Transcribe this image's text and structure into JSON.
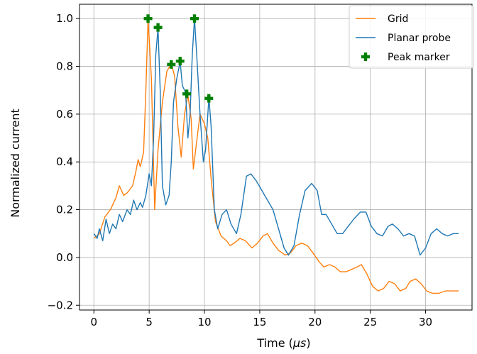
{
  "chart_data": {
    "type": "line",
    "title": "",
    "xlabel_prefix": "Time (",
    "xlabel_unit": "μs",
    "xlabel_suffix": ")",
    "ylabel": "Normalized current",
    "xlim": [
      -1.3,
      34.2
    ],
    "ylim": [
      -0.22,
      1.06
    ],
    "xticks": [
      0,
      5,
      10,
      15,
      20,
      25,
      30
    ],
    "xtick_labels": [
      "0",
      "5",
      "10",
      "15",
      "20",
      "25",
      "30"
    ],
    "yticks": [
      -0.2,
      0.0,
      0.2,
      0.4,
      0.6,
      0.8,
      1.0
    ],
    "ytick_labels": [
      "−0.2",
      "0.0",
      "0.2",
      "0.4",
      "0.6",
      "0.8",
      "1.0"
    ],
    "grid": true,
    "legend_position": "top-right",
    "series": [
      {
        "name": "Grid",
        "color": "#ff7f0e",
        "points": [
          [
            0.0,
            0.08
          ],
          [
            0.5,
            0.1
          ],
          [
            1.0,
            0.17
          ],
          [
            1.5,
            0.2
          ],
          [
            2.0,
            0.25
          ],
          [
            2.3,
            0.3
          ],
          [
            2.7,
            0.26
          ],
          [
            3.0,
            0.27
          ],
          [
            3.5,
            0.3
          ],
          [
            3.8,
            0.36
          ],
          [
            4.0,
            0.41
          ],
          [
            4.2,
            0.38
          ],
          [
            4.5,
            0.44
          ],
          [
            4.7,
            0.7
          ],
          [
            4.9,
            1.0
          ],
          [
            5.2,
            0.75
          ],
          [
            5.5,
            0.2
          ],
          [
            5.8,
            0.45
          ],
          [
            6.2,
            0.65
          ],
          [
            6.6,
            0.78
          ],
          [
            7.0,
            0.81
          ],
          [
            7.3,
            0.76
          ],
          [
            7.6,
            0.55
          ],
          [
            7.9,
            0.42
          ],
          [
            8.2,
            0.6
          ],
          [
            8.5,
            0.68
          ],
          [
            8.8,
            0.58
          ],
          [
            9.0,
            0.37
          ],
          [
            9.2,
            0.45
          ],
          [
            9.6,
            0.6
          ],
          [
            10.0,
            0.56
          ],
          [
            10.3,
            0.5
          ],
          [
            10.6,
            0.33
          ],
          [
            11.0,
            0.15
          ],
          [
            11.5,
            0.09
          ],
          [
            12.0,
            0.07
          ],
          [
            12.3,
            0.05
          ],
          [
            12.7,
            0.06
          ],
          [
            13.2,
            0.08
          ],
          [
            13.7,
            0.07
          ],
          [
            14.3,
            0.04
          ],
          [
            14.8,
            0.06
          ],
          [
            15.3,
            0.09
          ],
          [
            15.7,
            0.1
          ],
          [
            16.2,
            0.06
          ],
          [
            16.7,
            0.03
          ],
          [
            17.3,
            0.01
          ],
          [
            17.8,
            0.02
          ],
          [
            18.3,
            0.05
          ],
          [
            18.8,
            0.06
          ],
          [
            19.3,
            0.05
          ],
          [
            19.8,
            0.02
          ],
          [
            20.4,
            -0.02
          ],
          [
            20.8,
            -0.04
          ],
          [
            21.3,
            -0.03
          ],
          [
            21.8,
            -0.04
          ],
          [
            22.3,
            -0.06
          ],
          [
            22.8,
            -0.06
          ],
          [
            23.3,
            -0.05
          ],
          [
            23.8,
            -0.04
          ],
          [
            24.2,
            -0.03
          ],
          [
            24.7,
            -0.07
          ],
          [
            25.2,
            -0.12
          ],
          [
            25.7,
            -0.14
          ],
          [
            26.2,
            -0.13
          ],
          [
            26.7,
            -0.1
          ],
          [
            27.2,
            -0.11
          ],
          [
            27.7,
            -0.14
          ],
          [
            28.2,
            -0.13
          ],
          [
            28.6,
            -0.1
          ],
          [
            29.1,
            -0.09
          ],
          [
            29.6,
            -0.11
          ],
          [
            30.1,
            -0.14
          ],
          [
            30.6,
            -0.15
          ],
          [
            31.2,
            -0.15
          ],
          [
            31.8,
            -0.14
          ],
          [
            32.4,
            -0.14
          ],
          [
            33.0,
            -0.14
          ]
        ]
      },
      {
        "name": "Planar probe",
        "color": "#1f77b4",
        "points": [
          [
            0.0,
            0.1
          ],
          [
            0.3,
            0.08
          ],
          [
            0.5,
            0.12
          ],
          [
            0.8,
            0.07
          ],
          [
            1.1,
            0.16
          ],
          [
            1.4,
            0.1
          ],
          [
            1.7,
            0.14
          ],
          [
            2.0,
            0.12
          ],
          [
            2.3,
            0.18
          ],
          [
            2.6,
            0.15
          ],
          [
            3.0,
            0.2
          ],
          [
            3.3,
            0.18
          ],
          [
            3.6,
            0.24
          ],
          [
            3.9,
            0.2
          ],
          [
            4.2,
            0.23
          ],
          [
            4.4,
            0.21
          ],
          [
            4.7,
            0.26
          ],
          [
            5.0,
            0.35
          ],
          [
            5.2,
            0.3
          ],
          [
            5.4,
            0.5
          ],
          [
            5.6,
            0.85
          ],
          [
            5.8,
            0.96
          ],
          [
            6.0,
            0.7
          ],
          [
            6.2,
            0.3
          ],
          [
            6.5,
            0.22
          ],
          [
            6.8,
            0.26
          ],
          [
            7.0,
            0.4
          ],
          [
            7.2,
            0.65
          ],
          [
            7.5,
            0.75
          ],
          [
            7.8,
            0.82
          ],
          [
            8.0,
            0.72
          ],
          [
            8.3,
            0.69
          ],
          [
            8.5,
            0.5
          ],
          [
            8.7,
            0.6
          ],
          [
            8.9,
            0.85
          ],
          [
            9.1,
            1.0
          ],
          [
            9.3,
            0.85
          ],
          [
            9.6,
            0.6
          ],
          [
            9.9,
            0.4
          ],
          [
            10.1,
            0.45
          ],
          [
            10.4,
            0.67
          ],
          [
            10.6,
            0.55
          ],
          [
            10.9,
            0.2
          ],
          [
            11.2,
            0.12
          ],
          [
            11.6,
            0.18
          ],
          [
            12.0,
            0.2
          ],
          [
            12.4,
            0.14
          ],
          [
            12.9,
            0.1
          ],
          [
            13.3,
            0.18
          ],
          [
            13.8,
            0.34
          ],
          [
            14.2,
            0.35
          ],
          [
            14.7,
            0.32
          ],
          [
            15.2,
            0.28
          ],
          [
            15.7,
            0.24
          ],
          [
            16.2,
            0.2
          ],
          [
            16.7,
            0.12
          ],
          [
            17.2,
            0.04
          ],
          [
            17.6,
            0.01
          ],
          [
            18.1,
            0.05
          ],
          [
            18.6,
            0.18
          ],
          [
            19.1,
            0.28
          ],
          [
            19.7,
            0.31
          ],
          [
            20.2,
            0.28
          ],
          [
            20.6,
            0.18
          ],
          [
            21.0,
            0.18
          ],
          [
            21.5,
            0.14
          ],
          [
            22.0,
            0.1
          ],
          [
            22.5,
            0.1
          ],
          [
            23.0,
            0.13
          ],
          [
            23.5,
            0.16
          ],
          [
            24.1,
            0.19
          ],
          [
            24.6,
            0.19
          ],
          [
            25.1,
            0.13
          ],
          [
            25.6,
            0.1
          ],
          [
            26.1,
            0.09
          ],
          [
            26.6,
            0.13
          ],
          [
            27.0,
            0.14
          ],
          [
            27.5,
            0.12
          ],
          [
            28.0,
            0.09
          ],
          [
            28.5,
            0.1
          ],
          [
            29.0,
            0.09
          ],
          [
            29.5,
            0.01
          ],
          [
            30.0,
            0.04
          ],
          [
            30.5,
            0.1
          ],
          [
            31.0,
            0.12
          ],
          [
            31.5,
            0.1
          ],
          [
            32.0,
            0.09
          ],
          [
            32.5,
            0.1
          ],
          [
            33.0,
            0.1
          ]
        ]
      }
    ],
    "markers": {
      "name": "Peak marker",
      "color": "#008000",
      "points": [
        [
          4.9,
          1.0
        ],
        [
          5.8,
          0.963
        ],
        [
          7.0,
          0.808
        ],
        [
          7.8,
          0.822
        ],
        [
          8.4,
          0.685
        ],
        [
          9.1,
          1.0
        ],
        [
          10.4,
          0.666
        ]
      ]
    }
  }
}
